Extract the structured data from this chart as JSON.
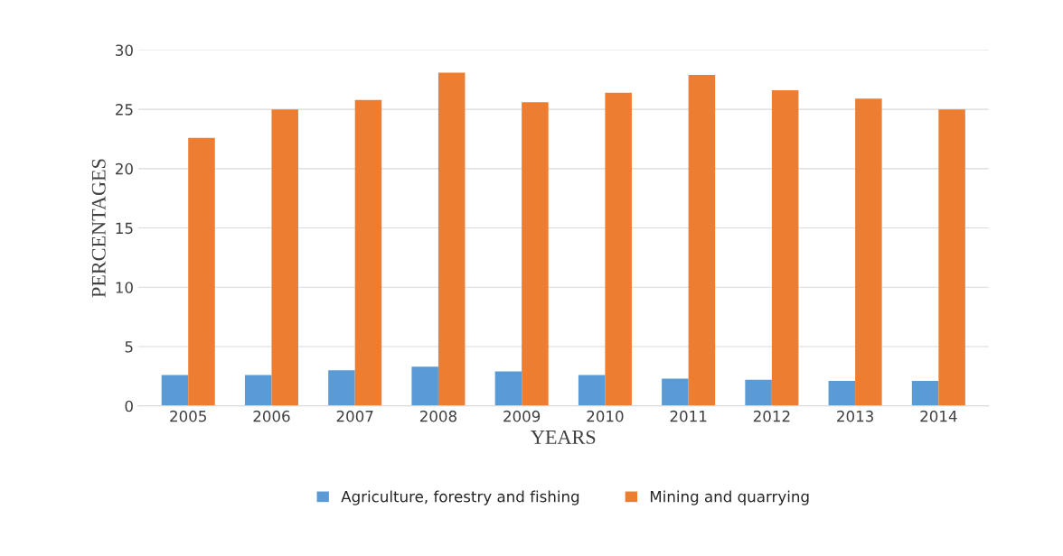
{
  "chart_data": {
    "type": "bar",
    "xlabel": "YEARS",
    "ylabel": "PERCENTAGES",
    "categories": [
      "2005",
      "2006",
      "2007",
      "2008",
      "2009",
      "2010",
      "2011",
      "2012",
      "2013",
      "2014"
    ],
    "series": [
      {
        "name": "Agriculture, forestry and fishing",
        "color": "#5b9bd5",
        "values": [
          2.6,
          2.6,
          3.0,
          3.3,
          2.9,
          2.6,
          2.3,
          2.2,
          2.1,
          2.1
        ]
      },
      {
        "name": "Mining and quarrying",
        "color": "#ed7d31",
        "values": [
          22.6,
          25.0,
          25.8,
          28.1,
          25.6,
          26.4,
          27.9,
          26.6,
          25.9,
          25.0
        ]
      }
    ],
    "ylim": [
      0,
      30
    ],
    "yticks": [
      0,
      5,
      10,
      15,
      20,
      25,
      30
    ],
    "grid": "y",
    "legend": "bottom"
  }
}
